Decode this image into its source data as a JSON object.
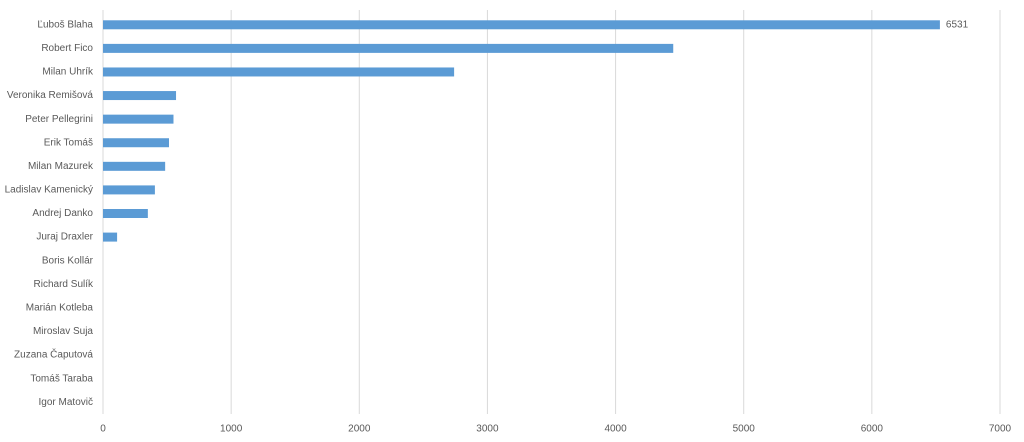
{
  "chart_data": {
    "type": "barh",
    "categories": [
      "Ľuboš Blaha",
      "Robert Fico",
      "Milan Uhrík",
      "Veronika Remišová",
      "Peter Pellegrini",
      "Erik Tomáš",
      "Milan Mazurek",
      "Ladislav Kamenický",
      "Andrej Danko",
      "Juraj Draxler",
      "Boris Kollár",
      "Richard Sulík",
      "Marián Kotleba",
      "Miroslav Suja",
      "Zuzana Čaputová",
      "Tomáš Taraba",
      "Igor Matovič"
    ],
    "values": [
      6531,
      4450,
      2740,
      570,
      550,
      515,
      485,
      405,
      350,
      110,
      0,
      0,
      0,
      0,
      0,
      0,
      0
    ],
    "color": "#5b9bd5",
    "xlim": [
      0,
      7000
    ],
    "xticks": [
      0,
      1000,
      2000,
      3000,
      4000,
      5000,
      6000,
      7000
    ],
    "grid": true,
    "data_labels": "max"
  }
}
